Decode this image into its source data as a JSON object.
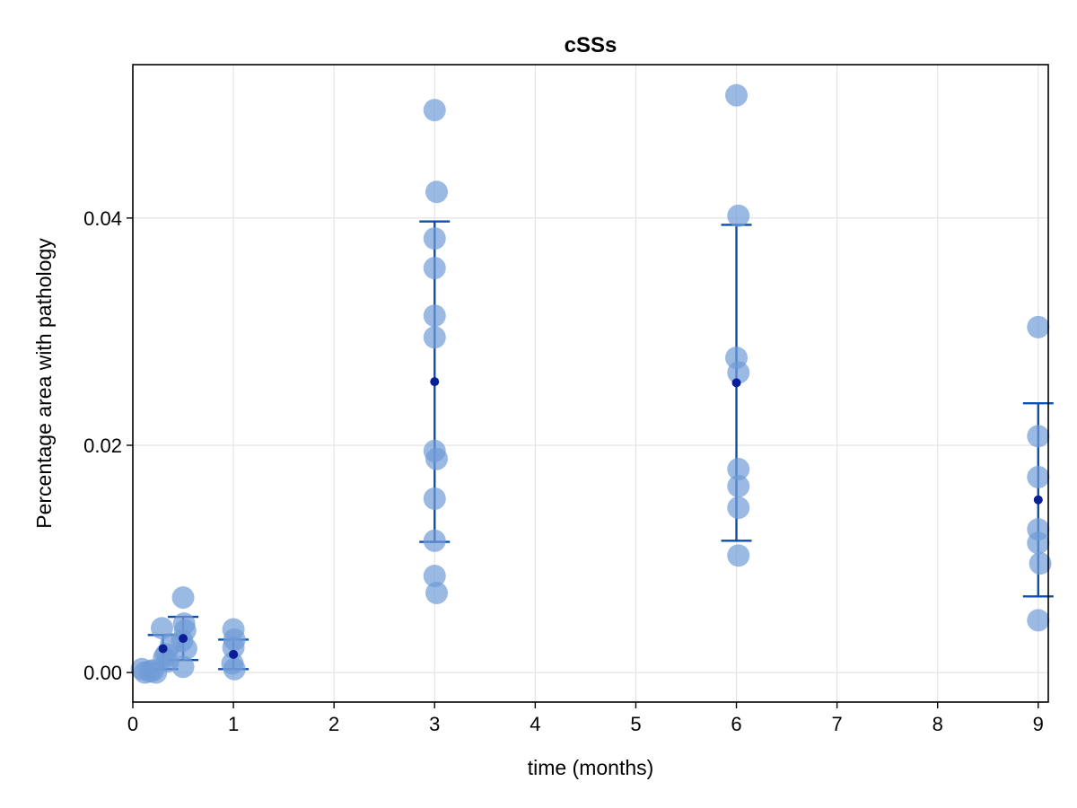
{
  "chart_data": {
    "type": "scatter",
    "title": "cSSs",
    "xlabel": "time (months)",
    "ylabel": "Percentage area with pathology",
    "xlim": [
      0,
      9.1
    ],
    "ylim": [
      -0.0026,
      0.0535
    ],
    "x_ticks": [
      0,
      1,
      2,
      3,
      4,
      5,
      6,
      7,
      8,
      9
    ],
    "x_tick_labels": [
      "0",
      "1",
      "2",
      "3",
      "4",
      "5",
      "6",
      "7",
      "8",
      "9"
    ],
    "y_ticks": [
      0.0,
      0.02,
      0.04
    ],
    "y_tick_labels": [
      "0.00",
      "0.02",
      "0.04"
    ],
    "grid": true,
    "legend": "none",
    "colors": {
      "points": "#6f9bd7",
      "points_opacity": 0.7,
      "error_bar": "#0a4fae",
      "mean": "#0a1f96",
      "frame": "#000000",
      "grid": "#e4e4e4"
    },
    "series": [
      {
        "role": "individual_measurements",
        "points": [
          {
            "x": 0.09,
            "y": 0.0003
          },
          {
            "x": 0.12,
            "y": 0.0
          },
          {
            "x": 0.17,
            "y": 0.0001
          },
          {
            "x": 0.2,
            "y": 0.0002
          },
          {
            "x": 0.23,
            "y": 0.0
          },
          {
            "x": 0.29,
            "y": 0.0039
          },
          {
            "x": 0.31,
            "y": 0.0013
          },
          {
            "x": 0.33,
            "y": 0.0016
          },
          {
            "x": 0.35,
            "y": 0.001
          },
          {
            "x": 0.38,
            "y": 0.0025
          },
          {
            "x": 0.5,
            "y": 0.0066
          },
          {
            "x": 0.51,
            "y": 0.0043
          },
          {
            "x": 0.52,
            "y": 0.0037
          },
          {
            "x": 0.49,
            "y": 0.0028
          },
          {
            "x": 0.53,
            "y": 0.0021
          },
          {
            "x": 0.5,
            "y": 0.0005
          },
          {
            "x": 1.0,
            "y": 0.0038
          },
          {
            "x": 1.01,
            "y": 0.0029
          },
          {
            "x": 1.0,
            "y": 0.0022
          },
          {
            "x": 0.99,
            "y": 0.0008
          },
          {
            "x": 1.01,
            "y": 0.0003
          },
          {
            "x": 3.0,
            "y": 0.0495
          },
          {
            "x": 3.02,
            "y": 0.0423
          },
          {
            "x": 3.0,
            "y": 0.0382
          },
          {
            "x": 3.0,
            "y": 0.0356
          },
          {
            "x": 3.0,
            "y": 0.0314
          },
          {
            "x": 3.0,
            "y": 0.0295
          },
          {
            "x": 3.0,
            "y": 0.0195
          },
          {
            "x": 3.02,
            "y": 0.0188
          },
          {
            "x": 3.0,
            "y": 0.0153
          },
          {
            "x": 3.0,
            "y": 0.0116
          },
          {
            "x": 3.0,
            "y": 0.0085
          },
          {
            "x": 3.02,
            "y": 0.007
          },
          {
            "x": 6.0,
            "y": 0.0508
          },
          {
            "x": 6.02,
            "y": 0.0402
          },
          {
            "x": 6.0,
            "y": 0.0277
          },
          {
            "x": 6.02,
            "y": 0.0264
          },
          {
            "x": 6.02,
            "y": 0.0179
          },
          {
            "x": 6.02,
            "y": 0.0164
          },
          {
            "x": 6.02,
            "y": 0.0145
          },
          {
            "x": 6.02,
            "y": 0.0103
          },
          {
            "x": 9.0,
            "y": 0.0304
          },
          {
            "x": 9.0,
            "y": 0.0208
          },
          {
            "x": 9.0,
            "y": 0.0172
          },
          {
            "x": 9.0,
            "y": 0.0126
          },
          {
            "x": 9.0,
            "y": 0.0114
          },
          {
            "x": 9.02,
            "y": 0.0096
          },
          {
            "x": 9.0,
            "y": 0.0046
          }
        ]
      },
      {
        "role": "mean_with_error_bars",
        "points": [
          {
            "x": 0.3,
            "y": 0.0021,
            "low": 0.0003,
            "high": 0.0033
          },
          {
            "x": 0.5,
            "y": 0.003,
            "low": 0.0011,
            "high": 0.0049
          },
          {
            "x": 1.0,
            "y": 0.0016,
            "low": 0.0003,
            "high": 0.0029
          },
          {
            "x": 3.0,
            "y": 0.0256,
            "low": 0.0115,
            "high": 0.0397
          },
          {
            "x": 6.0,
            "y": 0.0255,
            "low": 0.0116,
            "high": 0.0394
          },
          {
            "x": 9.0,
            "y": 0.0152,
            "low": 0.0067,
            "high": 0.0237
          }
        ]
      }
    ]
  }
}
